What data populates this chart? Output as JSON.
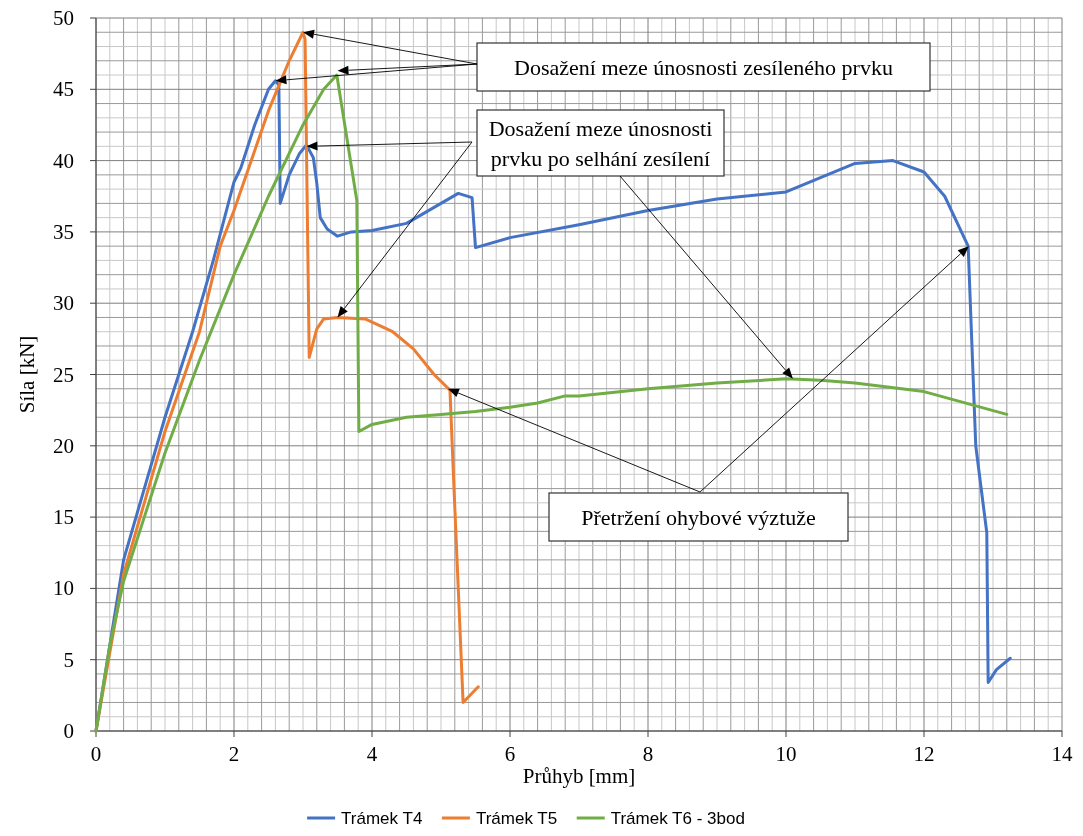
{
  "chart_data": {
    "type": "line",
    "xlabel": "Průhyb [mm]",
    "ylabel": "Síla  [kN]",
    "xlim": [
      0,
      14
    ],
    "xticks": [
      0,
      2,
      4,
      6,
      8,
      10,
      12,
      14
    ],
    "ylim": [
      0,
      50
    ],
    "yticks": [
      0,
      5,
      10,
      15,
      20,
      25,
      30,
      35,
      40,
      45,
      50
    ],
    "grid": true,
    "legend": "bottom",
    "marker": "none",
    "line_style": "solid",
    "annotations": [
      "Dosažení meze únosnosti zesíleného prvku",
      "Dosažení meze únosnosti prvku po selhání zesílení",
      "Přetržení ohybové výztuže"
    ],
    "series": [
      {
        "name": "Trámek T4",
        "color": "#4472c4",
        "x": [
          0,
          0.2,
          0.4,
          0.7,
          1,
          1.4,
          1.7,
          2,
          2.1,
          2.3,
          2.5,
          2.6,
          2.65,
          2.67,
          2.8,
          2.95,
          3.05,
          3.15,
          3.2,
          3.25,
          3.35,
          3.5,
          3.7,
          4,
          4.5,
          5,
          5.25,
          5.45,
          5.5,
          6,
          7,
          8,
          9,
          10,
          11,
          11.55,
          12,
          12.3,
          12.64,
          12.75,
          12.91,
          12.93,
          13.05,
          13.25
        ],
        "values": [
          0,
          6,
          12,
          17,
          22,
          28,
          33,
          38.5,
          39.5,
          42.5,
          45,
          45.6,
          45.3,
          37,
          39,
          40.5,
          41.1,
          40.2,
          38.4,
          36,
          35.2,
          34.7,
          35,
          35.1,
          35.6,
          37,
          37.7,
          37.4,
          33.9,
          34.6,
          35.5,
          36.5,
          37.3,
          37.8,
          39.8,
          40,
          39.2,
          37.5,
          34,
          20,
          13.9,
          3.4,
          4.3,
          5.1
        ]
      },
      {
        "name": "Trámek T5",
        "color": "#ed7d31",
        "x": [
          0,
          0.4,
          0.7,
          1,
          1.5,
          1.8,
          2,
          2.5,
          2.8,
          3,
          3.03,
          3.09,
          3.2,
          3.3,
          3.5,
          3.9,
          4.3,
          4.6,
          4.9,
          5.13,
          5.18,
          5.25,
          5.32,
          5.54
        ],
        "values": [
          0,
          11,
          16,
          21,
          28,
          34,
          36.5,
          43.5,
          47,
          49,
          48.5,
          26.2,
          28.2,
          28.9,
          29,
          28.9,
          28,
          26.8,
          25,
          23.9,
          18,
          10,
          2,
          3.1
        ]
      },
      {
        "name": "Trámek T6 - 3bod",
        "color": "#70ad47",
        "x": [
          0,
          0.2,
          0.4,
          0.7,
          1,
          1.5,
          2,
          2.5,
          3,
          3.3,
          3.49,
          3.78,
          3.81,
          4,
          4.5,
          5,
          5.5,
          6,
          6.4,
          6.8,
          7,
          8,
          9,
          10,
          10.5,
          11,
          12,
          13.2
        ],
        "values": [
          0,
          6,
          10.5,
          15,
          19.5,
          26,
          32,
          37.5,
          42.5,
          45,
          46,
          37.2,
          21,
          21.5,
          22,
          22.2,
          22.4,
          22.7,
          23,
          23.5,
          23.5,
          24,
          24.4,
          24.7,
          24.6,
          24.4,
          23.8,
          22.2
        ]
      }
    ]
  }
}
